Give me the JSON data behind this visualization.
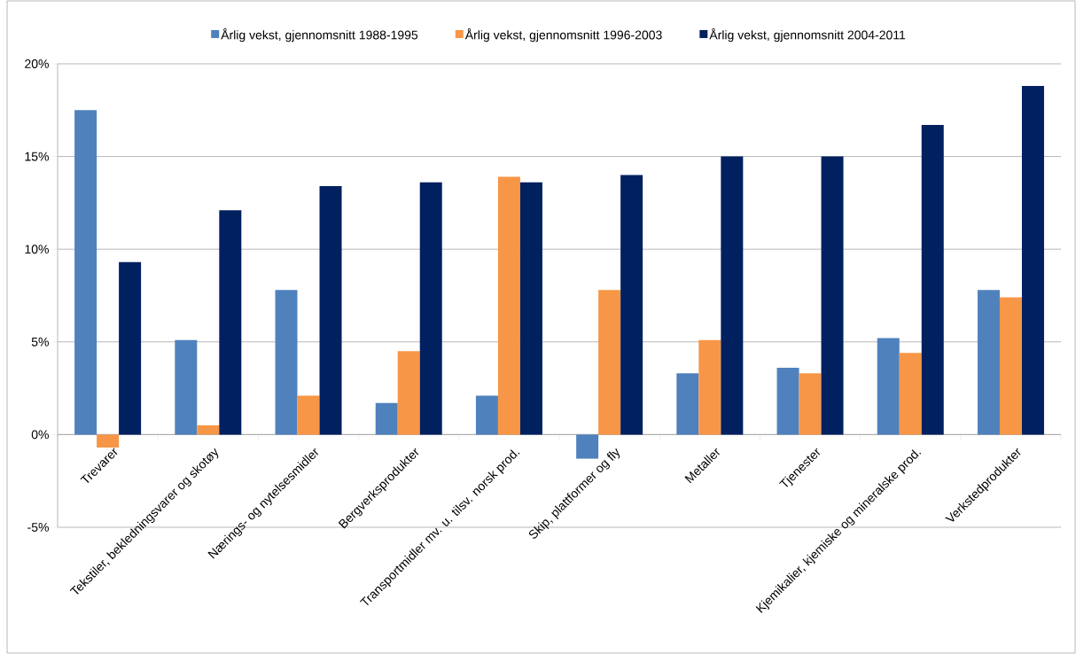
{
  "chart_data": {
    "type": "bar",
    "categories": [
      "Trevarer",
      "Tekstiler, bekledningsvarer og skotøy",
      "Nærings- og nytelsesmidler",
      "Bergverksprodukter",
      "Transportmidler mv. u. tilsv. norsk prod.",
      "Skip, plattformer og fly",
      "Metaller",
      "Tjenester",
      "Kjemikalier, kjemiske og mineralske prod.",
      "Verkstedprodukter"
    ],
    "series": [
      {
        "name": "Årlig vekst, gjennomsnitt 1988-1995",
        "color": "#4f81bd",
        "values": [
          17.5,
          5.1,
          7.8,
          1.7,
          2.1,
          -1.3,
          3.3,
          3.6,
          5.2,
          7.8
        ]
      },
      {
        "name": "Årlig vekst, gjennomsnitt 1996-2003",
        "color": "#f79646",
        "values": [
          -0.7,
          0.5,
          2.1,
          4.5,
          13.9,
          7.8,
          5.1,
          3.3,
          4.4,
          7.4
        ]
      },
      {
        "name": "Årlig vekst, gjennomsnitt 2004-2011",
        "color": "#002060",
        "values": [
          9.3,
          12.1,
          13.4,
          13.6,
          13.6,
          14.0,
          15.0,
          15.0,
          16.7,
          18.8
        ]
      }
    ],
    "ylim": [
      -5,
      20
    ],
    "yticks": [
      {
        "value": -5,
        "label": "-5%"
      },
      {
        "value": 0,
        "label": "0%"
      },
      {
        "value": 5,
        "label": "5%"
      },
      {
        "value": 10,
        "label": "10%"
      },
      {
        "value": 15,
        "label": "15%"
      },
      {
        "value": 20,
        "label": "20%"
      }
    ],
    "grid": "y",
    "legend": "top"
  }
}
